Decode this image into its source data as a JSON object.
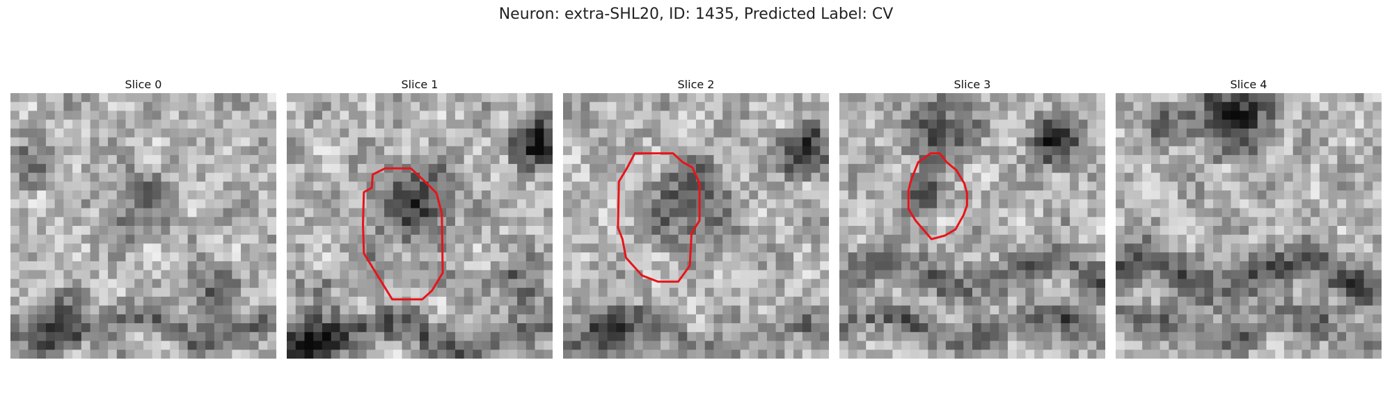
{
  "figure": {
    "title": "Neuron: extra-SHL20, ID: 1435, Predicted Label: CV",
    "contour_color": "#e8141a"
  },
  "slices": [
    {
      "title": "Slice 0",
      "has_contour": false,
      "seed": 11
    },
    {
      "title": "Slice 1",
      "has_contour": true,
      "seed": 23
    },
    {
      "title": "Slice 2",
      "has_contour": true,
      "seed": 37
    },
    {
      "title": "Slice 3",
      "has_contour": true,
      "seed": 53
    },
    {
      "title": "Slice 4",
      "has_contour": false,
      "seed": 71
    }
  ]
}
